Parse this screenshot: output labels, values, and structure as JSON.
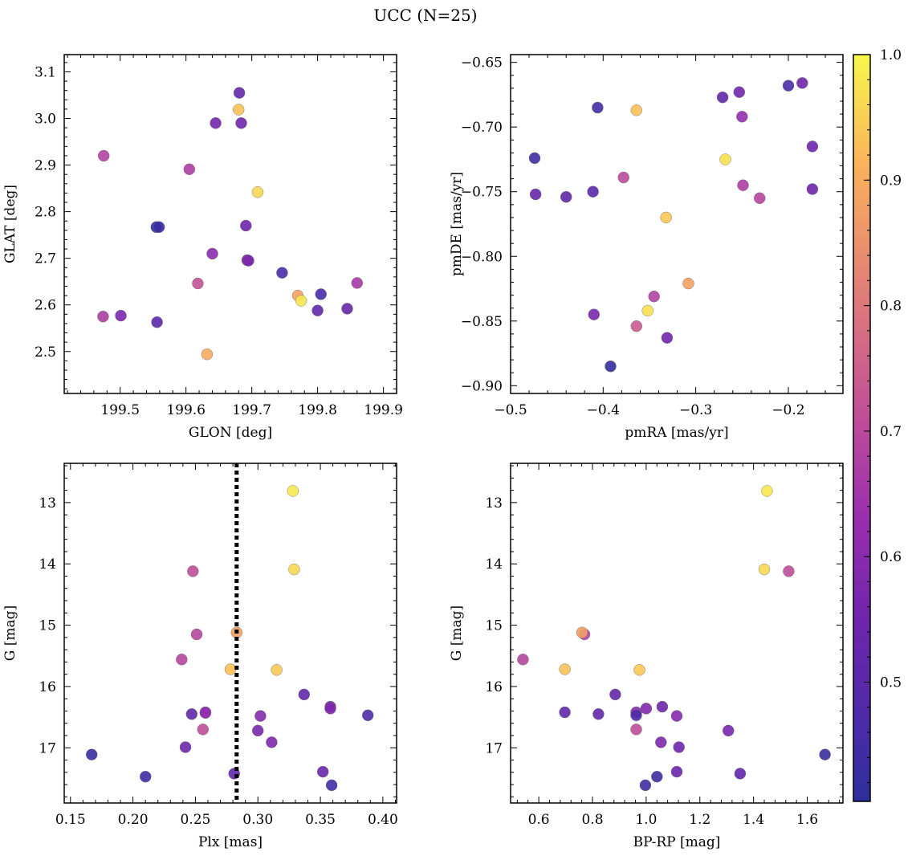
{
  "figure": {
    "title": "UCC (N=25)"
  },
  "colorbar": {
    "colormap": "plasma",
    "range": [
      0.405,
      1.0
    ],
    "tick_labels": [
      "1.0",
      "0.9",
      "0.8",
      "0.7",
      "0.6",
      "0.5"
    ],
    "tick_values": [
      1.0,
      0.9,
      0.8,
      0.7,
      0.6,
      0.5
    ]
  },
  "chart_data": [
    {
      "type": "scatter",
      "xlabel": "GLON [deg]",
      "ylabel": "GLAT [deg]",
      "xlim": [
        199.415,
        199.92
      ],
      "ylim": [
        2.41,
        3.137
      ],
      "xticks": [
        199.5,
        199.6,
        199.7,
        199.8,
        199.9
      ],
      "xtick_labels": [
        "199.5",
        "199.6",
        "199.7",
        "199.8",
        "199.9"
      ],
      "yticks": [
        2.5,
        2.6,
        2.7,
        2.8,
        2.9,
        3.0,
        3.1
      ],
      "ytick_labels": [
        "2.5",
        "2.6",
        "2.7",
        "2.8",
        "2.9",
        "3.0",
        "3.1"
      ],
      "invert_y": false,
      "points": [
        {
          "x": 199.681,
          "y": 3.055,
          "c": 0.52
        },
        {
          "x": 199.68,
          "y": 3.019,
          "c": 0.93
        },
        {
          "x": 199.645,
          "y": 2.99,
          "c": 0.56
        },
        {
          "x": 199.684,
          "y": 2.99,
          "c": 0.55
        },
        {
          "x": 199.475,
          "y": 2.92,
          "c": 0.68
        },
        {
          "x": 199.605,
          "y": 2.891,
          "c": 0.67
        },
        {
          "x": 199.709,
          "y": 2.842,
          "c": 0.96
        },
        {
          "x": 199.555,
          "y": 2.767,
          "c": 0.42
        },
        {
          "x": 199.559,
          "y": 2.767,
          "c": 0.43
        },
        {
          "x": 199.691,
          "y": 2.77,
          "c": 0.55
        },
        {
          "x": 199.64,
          "y": 2.71,
          "c": 0.6
        },
        {
          "x": 199.693,
          "y": 2.696,
          "c": 0.57
        },
        {
          "x": 199.695,
          "y": 2.695,
          "c": 0.57
        },
        {
          "x": 199.746,
          "y": 2.669,
          "c": 0.46
        },
        {
          "x": 199.618,
          "y": 2.646,
          "c": 0.72
        },
        {
          "x": 199.86,
          "y": 2.647,
          "c": 0.66
        },
        {
          "x": 199.77,
          "y": 2.62,
          "c": 0.88
        },
        {
          "x": 199.775,
          "y": 2.609,
          "c": 0.98
        },
        {
          "x": 199.805,
          "y": 2.623,
          "c": 0.46
        },
        {
          "x": 199.474,
          "y": 2.575,
          "c": 0.67
        },
        {
          "x": 199.501,
          "y": 2.577,
          "c": 0.57
        },
        {
          "x": 199.8,
          "y": 2.588,
          "c": 0.52
        },
        {
          "x": 199.845,
          "y": 2.592,
          "c": 0.53
        },
        {
          "x": 199.556,
          "y": 2.563,
          "c": 0.51
        },
        {
          "x": 199.632,
          "y": 2.494,
          "c": 0.9
        }
      ]
    },
    {
      "type": "scatter",
      "xlabel": "pmRA [mas/yr]",
      "ylabel": "pmDE [mas/yr]",
      "xlim": [
        -0.5,
        -0.141
      ],
      "ylim": [
        -0.906,
        -0.644
      ],
      "xticks": [
        -0.5,
        -0.4,
        -0.3,
        -0.2
      ],
      "xtick_labels": [
        "−0.5",
        "−0.4",
        "−0.3",
        "−0.2"
      ],
      "yticks": [
        -0.9,
        -0.85,
        -0.8,
        -0.75,
        -0.7,
        -0.65
      ],
      "ytick_labels": [
        "−0.90",
        "−0.85",
        "−0.80",
        "−0.75",
        "−0.70",
        "−0.65"
      ],
      "invert_y": false,
      "points": [
        {
          "x": -0.185,
          "y": -0.666,
          "c": 0.55
        },
        {
          "x": -0.2,
          "y": -0.668,
          "c": 0.47
        },
        {
          "x": -0.253,
          "y": -0.673,
          "c": 0.55
        },
        {
          "x": -0.271,
          "y": -0.677,
          "c": 0.52
        },
        {
          "x": -0.406,
          "y": -0.685,
          "c": 0.45
        },
        {
          "x": -0.364,
          "y": -0.687,
          "c": 0.93
        },
        {
          "x": -0.25,
          "y": -0.692,
          "c": 0.62
        },
        {
          "x": -0.174,
          "y": -0.715,
          "c": 0.55
        },
        {
          "x": -0.474,
          "y": -0.724,
          "c": 0.45
        },
        {
          "x": -0.268,
          "y": -0.725,
          "c": 0.97
        },
        {
          "x": -0.378,
          "y": -0.739,
          "c": 0.7
        },
        {
          "x": -0.249,
          "y": -0.745,
          "c": 0.67
        },
        {
          "x": -0.174,
          "y": -0.748,
          "c": 0.55
        },
        {
          "x": -0.411,
          "y": -0.75,
          "c": 0.5
        },
        {
          "x": -0.473,
          "y": -0.752,
          "c": 0.53
        },
        {
          "x": -0.44,
          "y": -0.754,
          "c": 0.52
        },
        {
          "x": -0.231,
          "y": -0.755,
          "c": 0.69
        },
        {
          "x": -0.332,
          "y": -0.77,
          "c": 0.94
        },
        {
          "x": -0.308,
          "y": -0.821,
          "c": 0.88
        },
        {
          "x": -0.345,
          "y": -0.831,
          "c": 0.68
        },
        {
          "x": -0.352,
          "y": -0.842,
          "c": 0.97
        },
        {
          "x": -0.41,
          "y": -0.845,
          "c": 0.57
        },
        {
          "x": -0.364,
          "y": -0.854,
          "c": 0.74
        },
        {
          "x": -0.331,
          "y": -0.863,
          "c": 0.55
        },
        {
          "x": -0.392,
          "y": -0.885,
          "c": 0.42
        }
      ]
    },
    {
      "type": "scatter",
      "xlabel": "Plx [mas]",
      "ylabel": "G [mag]",
      "xlim": [
        0.145,
        0.411
      ],
      "ylim": [
        12.36,
        17.9
      ],
      "xticks": [
        0.15,
        0.2,
        0.25,
        0.3,
        0.35,
        0.4
      ],
      "xtick_labels": [
        "0.15",
        "0.20",
        "0.25",
        "0.30",
        "0.35",
        "0.40"
      ],
      "yticks": [
        13,
        14,
        15,
        16,
        17
      ],
      "ytick_labels": [
        "13",
        "14",
        "15",
        "16",
        "17"
      ],
      "invert_y": true,
      "vline": 0.283,
      "points": [
        {
          "x": 0.328,
          "y": 12.81,
          "c": 0.98
        },
        {
          "x": 0.329,
          "y": 14.09,
          "c": 0.96
        },
        {
          "x": 0.248,
          "y": 14.12,
          "c": 0.71
        },
        {
          "x": 0.251,
          "y": 15.15,
          "c": 0.69
        },
        {
          "x": 0.283,
          "y": 15.12,
          "c": 0.88
        },
        {
          "x": 0.239,
          "y": 15.56,
          "c": 0.69
        },
        {
          "x": 0.278,
          "y": 15.72,
          "c": 0.93
        },
        {
          "x": 0.315,
          "y": 15.73,
          "c": 0.94
        },
        {
          "x": 0.337,
          "y": 16.13,
          "c": 0.52
        },
        {
          "x": 0.358,
          "y": 16.33,
          "c": 0.55
        },
        {
          "x": 0.358,
          "y": 16.36,
          "c": 0.58
        },
        {
          "x": 0.258,
          "y": 16.42,
          "c": 0.6
        },
        {
          "x": 0.258,
          "y": 16.43,
          "c": 0.62
        },
        {
          "x": 0.247,
          "y": 16.45,
          "c": 0.52
        },
        {
          "x": 0.302,
          "y": 16.48,
          "c": 0.59
        },
        {
          "x": 0.388,
          "y": 16.47,
          "c": 0.47
        },
        {
          "x": 0.256,
          "y": 16.7,
          "c": 0.71
        },
        {
          "x": 0.3,
          "y": 16.72,
          "c": 0.57
        },
        {
          "x": 0.311,
          "y": 16.91,
          "c": 0.58
        },
        {
          "x": 0.242,
          "y": 16.99,
          "c": 0.55
        },
        {
          "x": 0.167,
          "y": 17.11,
          "c": 0.43
        },
        {
          "x": 0.352,
          "y": 17.39,
          "c": 0.54
        },
        {
          "x": 0.281,
          "y": 17.42,
          "c": 0.52
        },
        {
          "x": 0.21,
          "y": 17.47,
          "c": 0.44
        },
        {
          "x": 0.359,
          "y": 17.61,
          "c": 0.45
        }
      ]
    },
    {
      "type": "scatter",
      "xlabel": "BP-RP [mag]",
      "ylabel": "G [mag]",
      "xlim": [
        0.495,
        1.733
      ],
      "ylim": [
        12.36,
        17.9
      ],
      "xticks": [
        0.6,
        0.8,
        1.0,
        1.2,
        1.4,
        1.6
      ],
      "xtick_labels": [
        "0.6",
        "0.8",
        "1.0",
        "1.2",
        "1.4",
        "1.6"
      ],
      "yticks": [
        13,
        14,
        15,
        16,
        17
      ],
      "ytick_labels": [
        "13",
        "14",
        "15",
        "16",
        "17"
      ],
      "invert_y": true,
      "points": [
        {
          "x": 1.45,
          "y": 12.81,
          "c": 0.98
        },
        {
          "x": 1.44,
          "y": 14.09,
          "c": 0.96
        },
        {
          "x": 1.531,
          "y": 14.12,
          "c": 0.71
        },
        {
          "x": 0.77,
          "y": 15.15,
          "c": 0.69
        },
        {
          "x": 0.761,
          "y": 15.12,
          "c": 0.88
        },
        {
          "x": 0.541,
          "y": 15.56,
          "c": 0.69
        },
        {
          "x": 0.697,
          "y": 15.72,
          "c": 0.93
        },
        {
          "x": 0.975,
          "y": 15.73,
          "c": 0.94
        },
        {
          "x": 0.885,
          "y": 16.13,
          "c": 0.52
        },
        {
          "x": 1.06,
          "y": 16.33,
          "c": 0.55
        },
        {
          "x": 1.0,
          "y": 16.36,
          "c": 0.58
        },
        {
          "x": 0.963,
          "y": 16.42,
          "c": 0.6
        },
        {
          "x": 0.963,
          "y": 16.47,
          "c": 0.47
        },
        {
          "x": 0.697,
          "y": 16.42,
          "c": 0.52
        },
        {
          "x": 0.822,
          "y": 16.45,
          "c": 0.52
        },
        {
          "x": 1.114,
          "y": 16.48,
          "c": 0.59
        },
        {
          "x": 0.963,
          "y": 16.7,
          "c": 0.71
        },
        {
          "x": 1.306,
          "y": 16.72,
          "c": 0.57
        },
        {
          "x": 1.055,
          "y": 16.91,
          "c": 0.58
        },
        {
          "x": 1.122,
          "y": 16.99,
          "c": 0.55
        },
        {
          "x": 1.666,
          "y": 17.11,
          "c": 0.43
        },
        {
          "x": 1.114,
          "y": 17.39,
          "c": 0.54
        },
        {
          "x": 1.35,
          "y": 17.42,
          "c": 0.52
        },
        {
          "x": 1.04,
          "y": 17.47,
          "c": 0.44
        },
        {
          "x": 0.997,
          "y": 17.61,
          "c": 0.45
        }
      ]
    }
  ]
}
